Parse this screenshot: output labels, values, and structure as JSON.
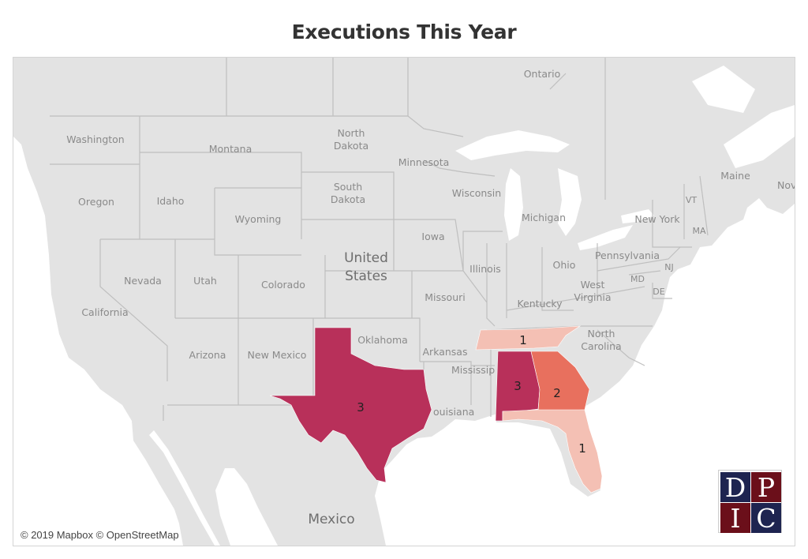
{
  "title": "Executions This Year",
  "attribution": "© 2019 Mapbox © OpenStreetMap",
  "logo": {
    "letters": [
      "D",
      "P",
      "I",
      "C"
    ],
    "colors": {
      "navy": "#1e2450",
      "maroon": "#6b0f1a"
    }
  },
  "colors": {
    "land": "#e3e3e3",
    "water": "#ffffff",
    "border": "#bfbfbf",
    "count_1": "#f4c0b4",
    "count_2": "#e8705e",
    "count_3": "#b8305a"
  },
  "labels": {
    "ontario": "Ontario",
    "washington": "Washington",
    "montana": "Montana",
    "north_dakota_1": "North",
    "north_dakota_2": "Dakota",
    "minnesota": "Minnesota",
    "south_dakota_1": "South",
    "south_dakota_2": "Dakota",
    "wisconsin": "Wisconsin",
    "oregon": "Oregon",
    "idaho": "Idaho",
    "wyoming": "Wyoming",
    "michigan": "Michigan",
    "maine": "Maine",
    "nova": "Nov",
    "vt": "VT",
    "new_york": "New York",
    "ma": "MA",
    "iowa": "Iowa",
    "us_1": "United",
    "us_2": "States",
    "nevada": "Nevada",
    "utah": "Utah",
    "colorado": "Colorado",
    "illinois": "Illinois",
    "ohio": "Ohio",
    "pennsylvania": "Pennsylvania",
    "nj": "NJ",
    "md": "MD",
    "de": "DE",
    "west_virginia_1": "West",
    "west_virginia_2": "Virginia",
    "california": "California",
    "missouri": "Missouri",
    "kentucky": "Kentucky",
    "north_carolina_1": "North",
    "north_carolina_2": "Carolina",
    "arizona": "Arizona",
    "new_mexico": "New Mexico",
    "oklahoma": "Oklahoma",
    "arkansas": "Arkansas",
    "mississippi": "Mississip",
    "louisiana": "ouisiana",
    "mexico": "Mexico"
  },
  "executions": [
    {
      "state": "Texas",
      "count": "3"
    },
    {
      "state": "Alabama",
      "count": "3"
    },
    {
      "state": "Georgia",
      "count": "2"
    },
    {
      "state": "Tennessee",
      "count": "1"
    },
    {
      "state": "Florida",
      "count": "1"
    }
  ]
}
